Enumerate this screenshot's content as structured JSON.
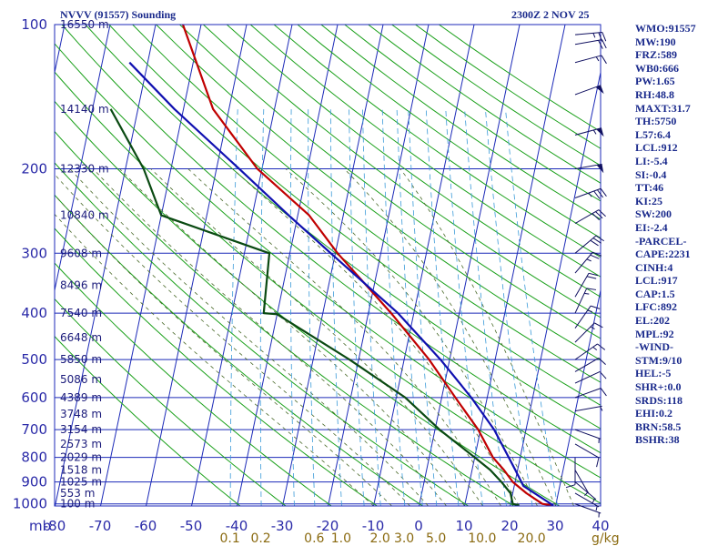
{
  "chart_data": {
    "type": "line",
    "title_left": "NVVV (91557) Sounding",
    "title_right": "2300Z  2 NOV 25",
    "pressure_unit": "mb",
    "mixing_ratio_unit": "g/kg",
    "pressure_ticks": [
      100,
      200,
      300,
      400,
      500,
      600,
      700,
      800,
      900,
      1000
    ],
    "xlim": [
      -80,
      40
    ],
    "ylim": [
      100,
      1050
    ],
    "x_ticks": [
      -80,
      -70,
      -60,
      -50,
      -40,
      -30,
      -20,
      -10,
      0,
      10,
      20,
      30,
      40
    ],
    "x_tick_labels": [
      "-80",
      "-70",
      "-60",
      "-50",
      "-40",
      "-30",
      "-20",
      "-10",
      "0",
      "10",
      "20",
      "30",
      "40"
    ],
    "height_labels": [
      {
        "p": 100,
        "label": "16550 m"
      },
      {
        "p": 150,
        "label": "14140 m"
      },
      {
        "p": 200,
        "label": "12330 m"
      },
      {
        "p": 250,
        "label": "10840 m"
      },
      {
        "p": 300,
        "label": "9608 m"
      },
      {
        "p": 350,
        "label": "8496 m"
      },
      {
        "p": 400,
        "label": "7540 m"
      },
      {
        "p": 450,
        "label": "6648 m"
      },
      {
        "p": 500,
        "label": "5850 m"
      },
      {
        "p": 550,
        "label": "5086 m"
      },
      {
        "p": 600,
        "label": "4389 m"
      },
      {
        "p": 650,
        "label": "3748 m"
      },
      {
        "p": 700,
        "label": "3154 m"
      },
      {
        "p": 750,
        "label": "2573 m"
      },
      {
        "p": 800,
        "label": "2029 m"
      },
      {
        "p": 850,
        "label": "1518 m"
      },
      {
        "p": 900,
        "label": "1025 m"
      },
      {
        "p": 950,
        "label": "553 m"
      },
      {
        "p": 1000,
        "label": "100 m"
      }
    ],
    "mixing_ratio_labels": [
      {
        "w": 0.1,
        "label": "0.1"
      },
      {
        "w": 0.2,
        "label": "0.2"
      },
      {
        "w": 0.6,
        "label": "0.6"
      },
      {
        "w": 1.0,
        "label": "1.0"
      },
      {
        "w": 2.0,
        "label": "2.0"
      },
      {
        "w": 3.0,
        "label": "3.0"
      },
      {
        "w": 5.0,
        "label": "5.0"
      },
      {
        "w": 10.0,
        "label": "10.0"
      },
      {
        "w": 20.0,
        "label": "20.0"
      }
    ],
    "series": [
      {
        "role": "temperature",
        "color": "#c00000",
        "points": [
          {
            "p": 1008,
            "t": 29.5
          },
          {
            "p": 1000,
            "t": 27.0
          },
          {
            "p": 950,
            "t": 23.0
          },
          {
            "p": 900,
            "t": 19.5
          },
          {
            "p": 850,
            "t": 17.0
          },
          {
            "p": 800,
            "t": 14.0
          },
          {
            "p": 700,
            "t": 9.5
          },
          {
            "p": 600,
            "t": 3.0
          },
          {
            "p": 500,
            "t": -4.5
          },
          {
            "p": 400,
            "t": -15.0
          },
          {
            "p": 300,
            "t": -29.5
          },
          {
            "p": 250,
            "t": -37.5
          },
          {
            "p": 200,
            "t": -51.0
          },
          {
            "p": 150,
            "t": -63.5
          },
          {
            "p": 100,
            "t": -74.0
          }
        ]
      },
      {
        "role": "dewpoint",
        "color": "#0a4a12",
        "points": [
          {
            "p": 1008,
            "t": 22.0
          },
          {
            "p": 1000,
            "t": 20.5
          },
          {
            "p": 950,
            "t": 19.5
          },
          {
            "p": 900,
            "t": 17.0
          },
          {
            "p": 850,
            "t": 14.0
          },
          {
            "p": 800,
            "t": 10.0
          },
          {
            "p": 700,
            "t": 1.0
          },
          {
            "p": 600,
            "t": -8.0
          },
          {
            "p": 500,
            "t": -22.0
          },
          {
            "p": 402,
            "t": -40.0
          },
          {
            "p": 400,
            "t": -43.0
          },
          {
            "p": 300,
            "t": -44.5
          },
          {
            "p": 250,
            "t": -70.0
          },
          {
            "p": 200,
            "t": -76.0
          },
          {
            "p": 150,
            "t": -86.0
          }
        ]
      },
      {
        "role": "parcel",
        "color": "#1010b0",
        "points": [
          {
            "p": 1008,
            "t": 29.5
          },
          {
            "p": 917,
            "t": 22.0
          },
          {
            "p": 850,
            "t": 19.5
          },
          {
            "p": 700,
            "t": 13.0
          },
          {
            "p": 600,
            "t": 6.5
          },
          {
            "p": 500,
            "t": -2.0
          },
          {
            "p": 400,
            "t": -13.5
          },
          {
            "p": 300,
            "t": -31.0
          },
          {
            "p": 250,
            "t": -42.0
          },
          {
            "p": 200,
            "t": -55.0
          },
          {
            "p": 150,
            "t": -72.0
          },
          {
            "p": 120,
            "t": -84.0
          }
        ]
      }
    ],
    "wind_barbs": [
      {
        "p": 105,
        "dir": 85,
        "spd": 25
      },
      {
        "p": 110,
        "dir": 80,
        "spd": 20
      },
      {
        "p": 120,
        "dir": 75,
        "spd": 15
      },
      {
        "p": 140,
        "dir": 70,
        "spd": 50
      },
      {
        "p": 170,
        "dir": 75,
        "spd": 55
      },
      {
        "p": 200,
        "dir": 80,
        "spd": 50
      },
      {
        "p": 230,
        "dir": 70,
        "spd": 35
      },
      {
        "p": 260,
        "dir": 60,
        "spd": 30
      },
      {
        "p": 300,
        "dir": 50,
        "spd": 30
      },
      {
        "p": 330,
        "dir": 40,
        "spd": 25
      },
      {
        "p": 370,
        "dir": 30,
        "spd": 20
      },
      {
        "p": 400,
        "dir": 25,
        "spd": 15
      },
      {
        "p": 430,
        "dir": 35,
        "spd": 15
      },
      {
        "p": 460,
        "dir": 45,
        "spd": 15
      },
      {
        "p": 500,
        "dir": 55,
        "spd": 15
      },
      {
        "p": 530,
        "dir": 60,
        "spd": 10
      },
      {
        "p": 560,
        "dir": 65,
        "spd": 10
      },
      {
        "p": 600,
        "dir": 70,
        "spd": 10
      },
      {
        "p": 640,
        "dir": 80,
        "spd": 5
      },
      {
        "p": 700,
        "dir": 110,
        "spd": 5
      },
      {
        "p": 750,
        "dir": 120,
        "spd": 10
      },
      {
        "p": 800,
        "dir": 180,
        "spd": 10
      },
      {
        "p": 850,
        "dir": 150,
        "spd": 5
      },
      {
        "p": 900,
        "dir": 130,
        "spd": 5
      },
      {
        "p": 950,
        "dir": 120,
        "spd": 5
      },
      {
        "p": 1000,
        "dir": 110,
        "spd": 5
      }
    ]
  },
  "indices": [
    "WMO:91557",
    "MW:190",
    "FRZ:589",
    "WB0:666",
    "PW:1.65",
    "RH:48.8",
    "MAXT:31.7",
    "TH:5750",
    "L57:6.4",
    "LCL:912",
    "LI:-5.4",
    "SI:-0.4",
    "TT:46",
    "KI:25",
    "SW:200",
    "EI:-2.4",
    "-PARCEL-",
    "CAPE:2231",
    "CINH:4",
    "LCL:917",
    "CAP:1.5",
    "LFC:892",
    "EL:202",
    "MPL:92",
    "-WIND-",
    "STM:9/10",
    "HEL:-5",
    "SHR+:0.0",
    "SRDS:118",
    "EHI:0.2",
    "BRN:58.5",
    "BSHR:38"
  ],
  "colors": {
    "grid": "#1c2ab8",
    "dry_adiabat": "#1aa01a",
    "moist_adiabat": "#4a6a2a",
    "mixing_ratio": "#3a9ad8",
    "background": "#ffffff"
  }
}
